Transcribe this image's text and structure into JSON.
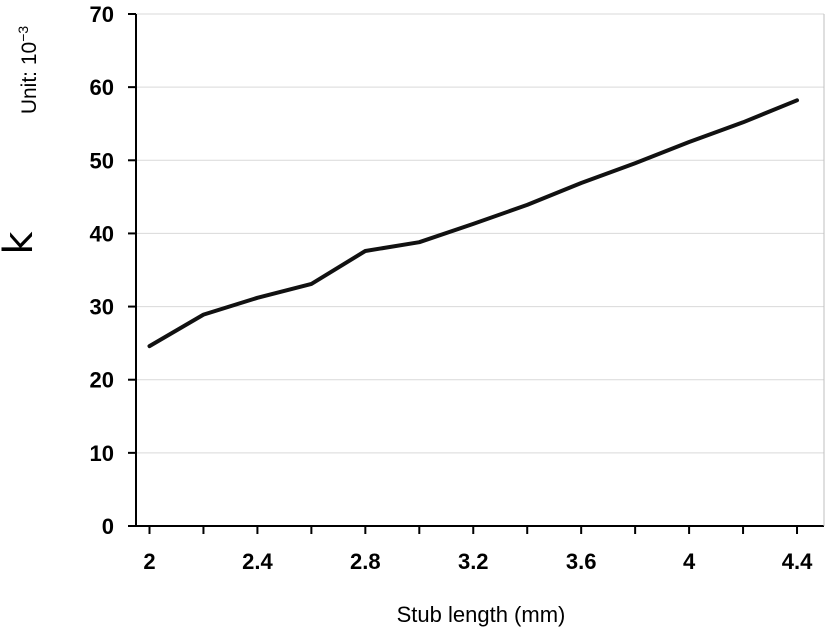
{
  "chart_data": {
    "type": "line",
    "xlabel": "Stub length (mm)",
    "ylabel": "k",
    "unit_prefix": "Unit: 10",
    "unit_exponent": "−3",
    "xlim": [
      1.95,
      4.5
    ],
    "ylim": [
      0,
      70
    ],
    "x_ticks": [
      2,
      2.4,
      2.8,
      3.2,
      3.6,
      4,
      4.4
    ],
    "x_tick_labels": [
      "2",
      "2.4",
      "2.8",
      "3.2",
      "3.6",
      "4",
      "4.4"
    ],
    "y_ticks": [
      0,
      10,
      20,
      30,
      40,
      50,
      60,
      70
    ],
    "y_tick_labels": [
      "0",
      "10",
      "20",
      "30",
      "40",
      "50",
      "60",
      "70"
    ],
    "grid": "horizontal",
    "series": [
      {
        "x": [
          2.0,
          2.2,
          2.4,
          2.6,
          2.8,
          3.0,
          3.2,
          3.4,
          3.6,
          3.8,
          4.0,
          4.2,
          4.4
        ],
        "y": [
          24.6,
          28.9,
          31.2,
          33.1,
          37.6,
          38.8,
          41.3,
          43.9,
          46.9,
          49.6,
          52.5,
          55.2,
          58.2
        ],
        "color": "#111111"
      }
    ]
  }
}
